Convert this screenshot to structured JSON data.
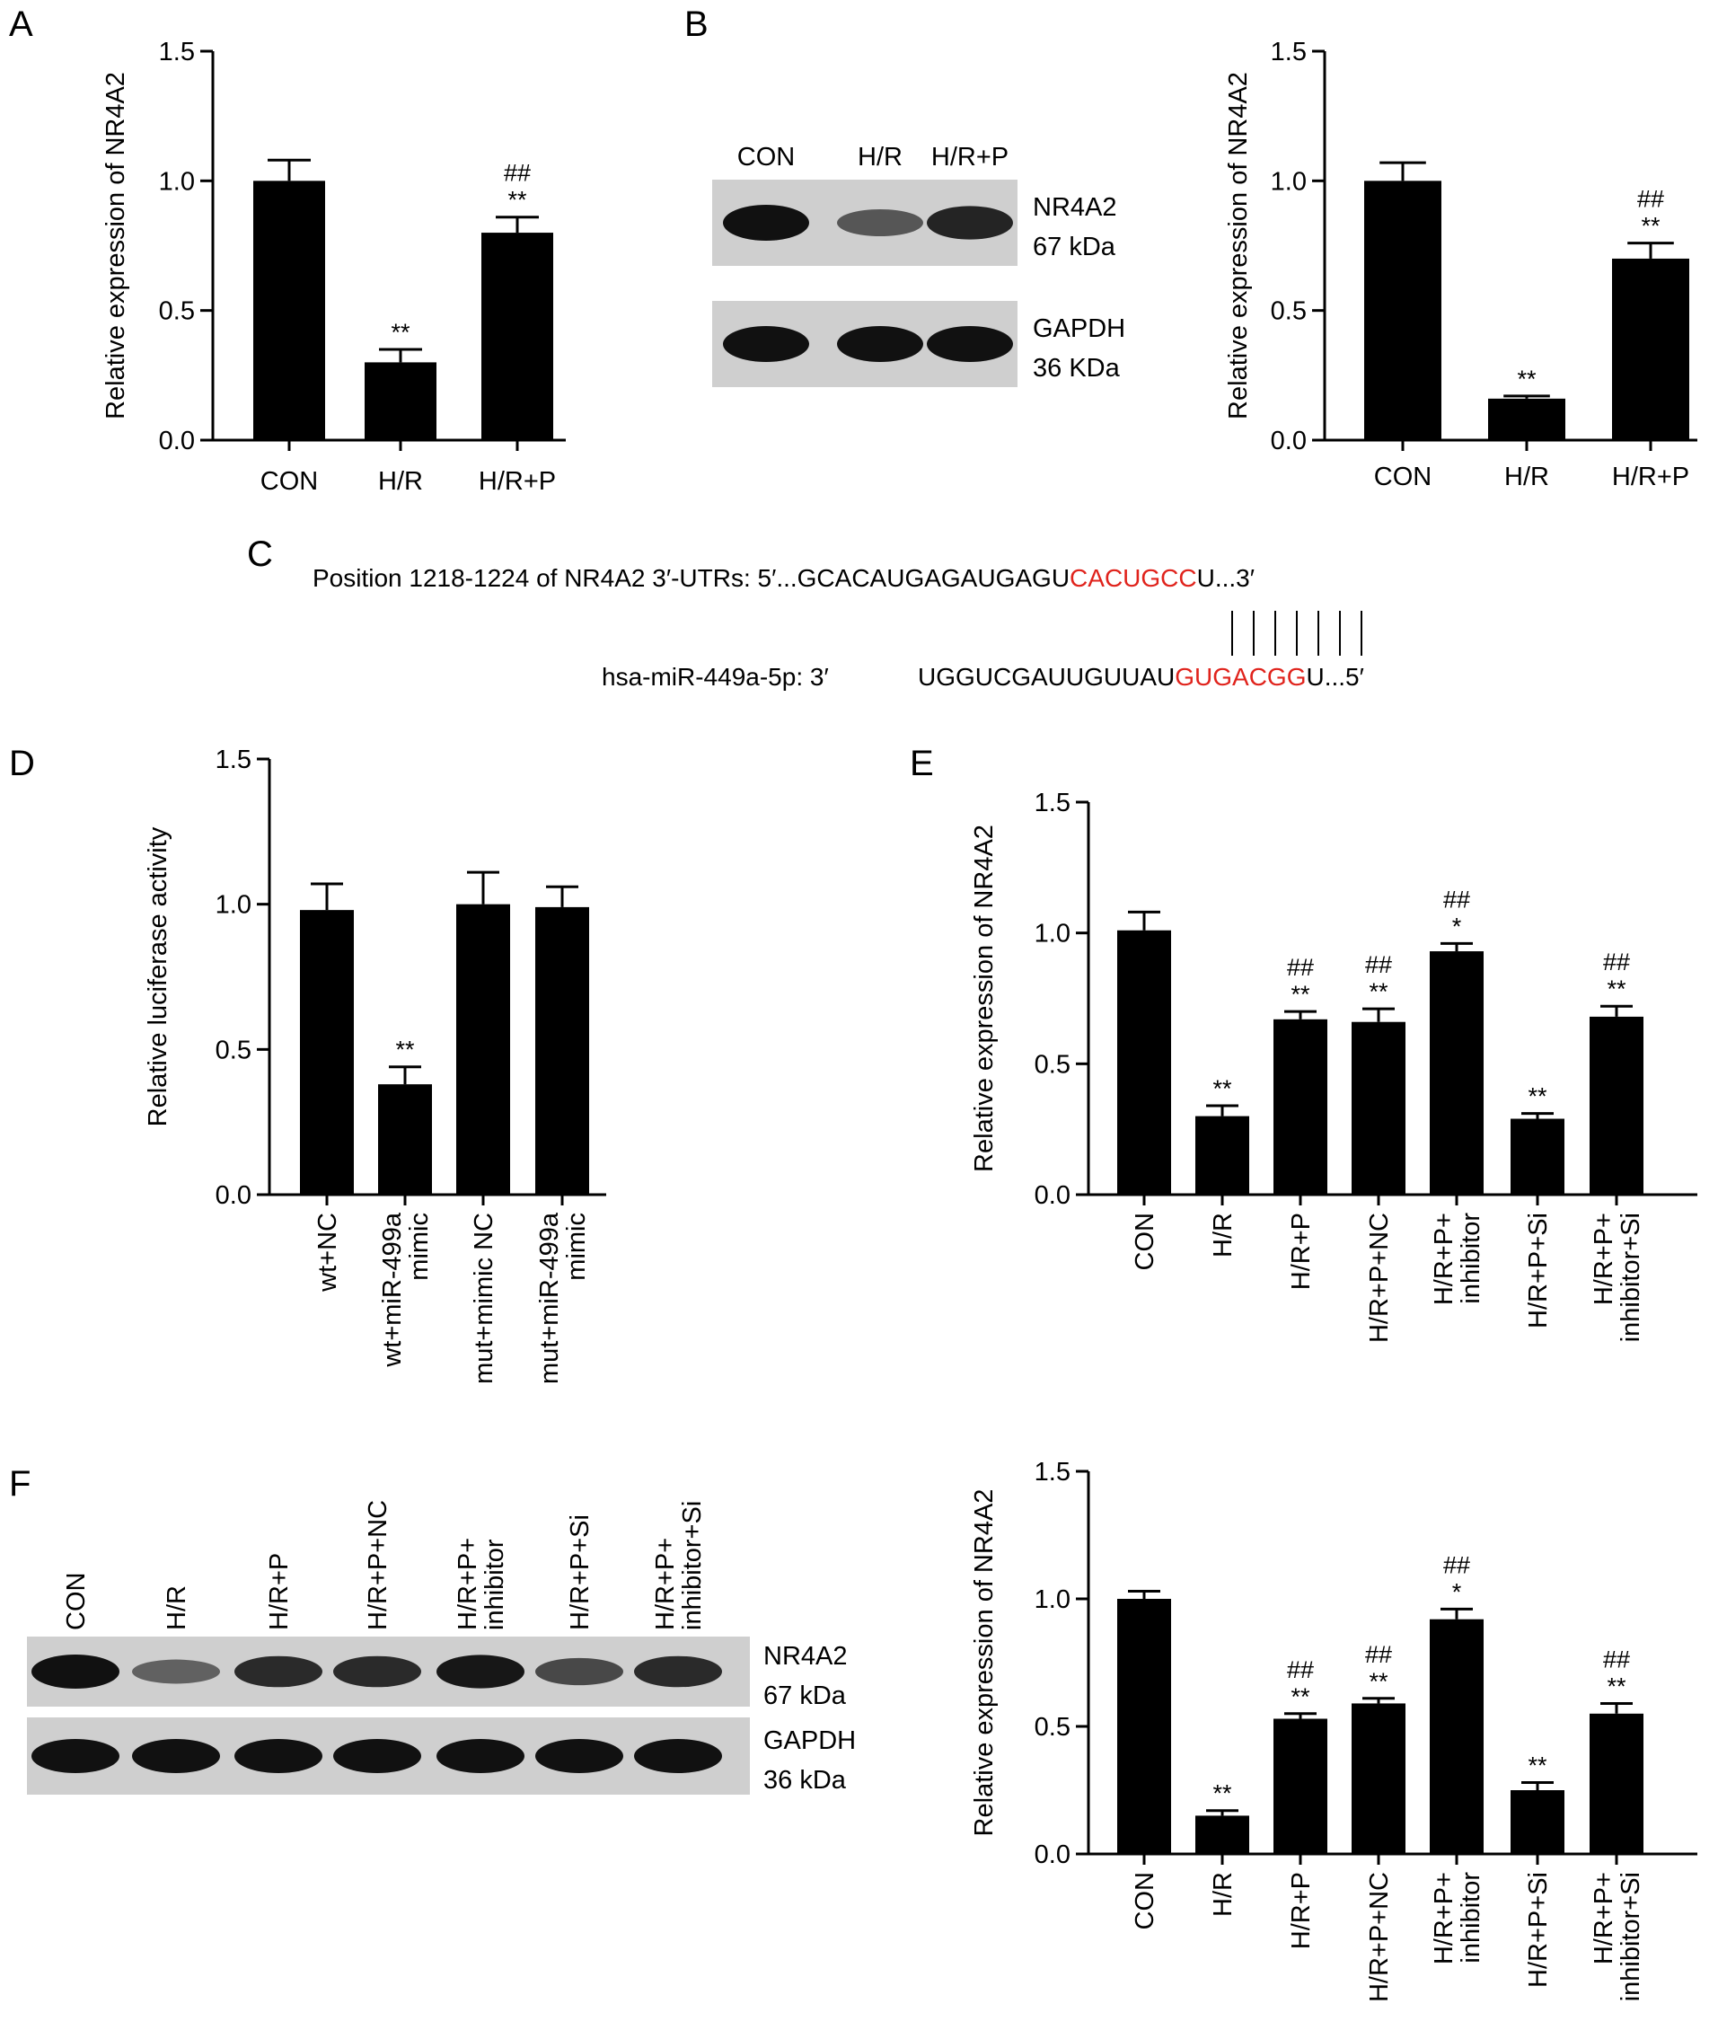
{
  "panels": {
    "a": "A",
    "b": "B",
    "c": "C",
    "d": "D",
    "e": "E",
    "f": "F"
  },
  "blot_b": {
    "lanes": [
      "CON",
      "H/R",
      "H/R+P"
    ],
    "bands": [
      {
        "name": "NR4A2",
        "size": "67 kDa",
        "intensity": [
          1.0,
          0.45,
          0.85
        ]
      },
      {
        "name": "GAPDH",
        "size": "36 KDa",
        "intensity": [
          1.0,
          1.0,
          1.0
        ]
      }
    ]
  },
  "blot_f": {
    "lanes": [
      "CON",
      "H/R",
      "H/R+P",
      "H/R+P+NC",
      "H/R+P+\ninhibitor",
      "H/R+P+Si",
      "H/R+P+\ninhibitor+Si"
    ],
    "bands": [
      {
        "name": "NR4A2",
        "size": "67 kDa",
        "intensity": [
          1.0,
          0.35,
          0.8,
          0.8,
          0.95,
          0.55,
          0.8
        ]
      },
      {
        "name": "GAPDH",
        "size": "36 kDa",
        "intensity": [
          1.0,
          1.0,
          1.0,
          1.0,
          1.0,
          1.0,
          1.0
        ]
      }
    ]
  },
  "sequence": {
    "utr_prefix": "Position 1218-1224 of NR4A2 3′-UTRs: 5′...GCACAUGAGAUGAGU",
    "utr_seed": "CACUGCC",
    "utr_suffix": "U...3′",
    "mir_label": "hsa-miR-449a-5p: 3′",
    "mir_prefix": "UGGUCGAUUGUUAU",
    "mir_seed": "GUGACGG",
    "mir_suffix": "U...5′",
    "seed_color": "#e0231c",
    "pair_count": 7
  },
  "chart_data": [
    {
      "id": "A",
      "type": "bar",
      "ylabel": "Relative expression of NR4A2",
      "ylim": [
        0,
        1.5
      ],
      "yticks": [
        "0.0",
        "0.5",
        "1.0",
        "1.5"
      ],
      "categories": [
        "CON",
        "H/R",
        "H/R+P"
      ],
      "values": [
        1.0,
        0.3,
        0.8
      ],
      "errors": [
        0.08,
        0.05,
        0.06
      ],
      "annotations": [
        [],
        [
          "**"
        ],
        [
          "**",
          "##"
        ]
      ],
      "rotate_labels": false
    },
    {
      "id": "B",
      "type": "bar",
      "ylabel": "Relative expression of NR4A2",
      "ylim": [
        0,
        1.5
      ],
      "yticks": [
        "0.0",
        "0.5",
        "1.0",
        "1.5"
      ],
      "categories": [
        "CON",
        "H/R",
        "H/R+P"
      ],
      "values": [
        1.0,
        0.16,
        0.7
      ],
      "errors": [
        0.07,
        0.01,
        0.06
      ],
      "annotations": [
        [],
        [
          "**"
        ],
        [
          "**",
          "##"
        ]
      ],
      "rotate_labels": false
    },
    {
      "id": "D",
      "type": "bar",
      "ylabel": "Relative luciferase activity",
      "ylim": [
        0,
        1.5
      ],
      "yticks": [
        "0.0",
        "0.5",
        "1.0",
        "1.5"
      ],
      "categories": [
        "wt+NC",
        "wt+miR-499a\nmimic",
        "mut+mimic NC",
        "mut+miR-499a\nmimic"
      ],
      "values": [
        0.98,
        0.38,
        1.0,
        0.99
      ],
      "errors": [
        0.09,
        0.06,
        0.11,
        0.07
      ],
      "annotations": [
        [],
        [
          "**"
        ],
        [],
        []
      ],
      "rotate_labels": true
    },
    {
      "id": "E",
      "type": "bar",
      "ylabel": "Relative expression of NR4A2",
      "ylim": [
        0,
        1.5
      ],
      "yticks": [
        "0.0",
        "0.5",
        "1.0",
        "1.5"
      ],
      "categories": [
        "CON",
        "H/R",
        "H/R+P",
        "H/R+P+NC",
        "H/R+P+\ninhibitor",
        "H/R+P+Si",
        "H/R+P+\ninhibitor+Si"
      ],
      "values": [
        1.01,
        0.3,
        0.67,
        0.66,
        0.93,
        0.29,
        0.68
      ],
      "errors": [
        0.07,
        0.04,
        0.03,
        0.05,
        0.03,
        0.02,
        0.04
      ],
      "annotations": [
        [],
        [
          "**"
        ],
        [
          "**",
          "##"
        ],
        [
          "**",
          "##"
        ],
        [
          "*",
          "##"
        ],
        [
          "**"
        ],
        [
          "**",
          "##"
        ]
      ],
      "rotate_labels": true
    },
    {
      "id": "F",
      "type": "bar",
      "ylabel": "Relative expression of NR4A2",
      "ylim": [
        0,
        1.5
      ],
      "yticks": [
        "0.0",
        "0.5",
        "1.0",
        "1.5"
      ],
      "categories": [
        "CON",
        "H/R",
        "H/R+P",
        "H/R+P+NC",
        "H/R+P+\ninhibitor",
        "H/R+P+Si",
        "H/R+P+\ninhibitor+Si"
      ],
      "values": [
        1.0,
        0.15,
        0.53,
        0.59,
        0.92,
        0.25,
        0.55
      ],
      "errors": [
        0.03,
        0.02,
        0.02,
        0.02,
        0.04,
        0.03,
        0.04
      ],
      "annotations": [
        [],
        [
          "**"
        ],
        [
          "**",
          "##"
        ],
        [
          "**",
          "##"
        ],
        [
          "*",
          "##"
        ],
        [
          "**"
        ],
        [
          "**",
          "##"
        ]
      ],
      "rotate_labels": true
    }
  ]
}
